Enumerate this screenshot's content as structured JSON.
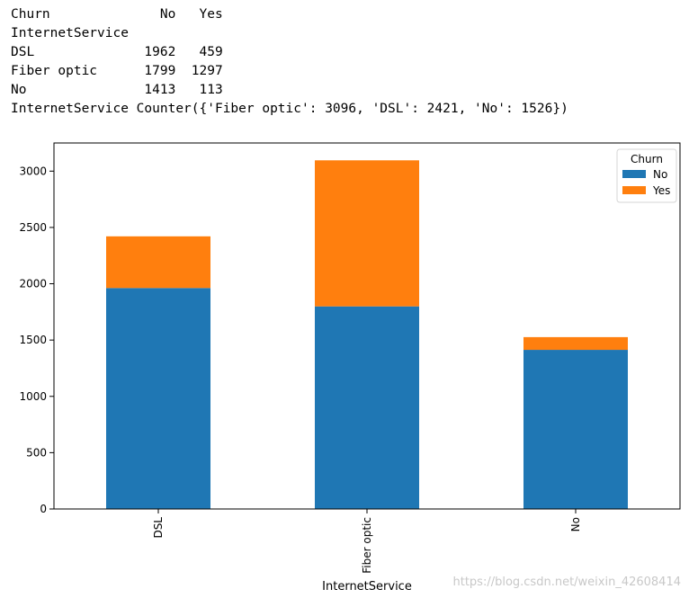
{
  "console": {
    "lines": [
      "Churn              No   Yes",
      "InternetService",
      "DSL              1962   459",
      "Fiber optic      1799  1297",
      "No               1413   113",
      "InternetService Counter({'Fiber optic': 3096, 'DSL': 2421, 'No': 1526})"
    ]
  },
  "chart_data": {
    "type": "bar",
    "stacked": true,
    "categories": [
      "DSL",
      "Fiber optic",
      "No"
    ],
    "series": [
      {
        "name": "No",
        "values": [
          1962,
          1799,
          1413
        ],
        "color": "#1f77b4"
      },
      {
        "name": "Yes",
        "values": [
          459,
          1297,
          113
        ],
        "color": "#ff7f0e"
      }
    ],
    "title": "",
    "xlabel": "InternetService",
    "ylabel": "",
    "ylim": [
      0,
      3250
    ],
    "yticks": [
      0,
      500,
      1000,
      1500,
      2000,
      2500,
      3000
    ],
    "legend_title": "Churn",
    "legend_position": "top-right",
    "grid": false,
    "xtick_rotation": 90
  },
  "watermark": "https://blog.csdn.net/weixin_42608414"
}
